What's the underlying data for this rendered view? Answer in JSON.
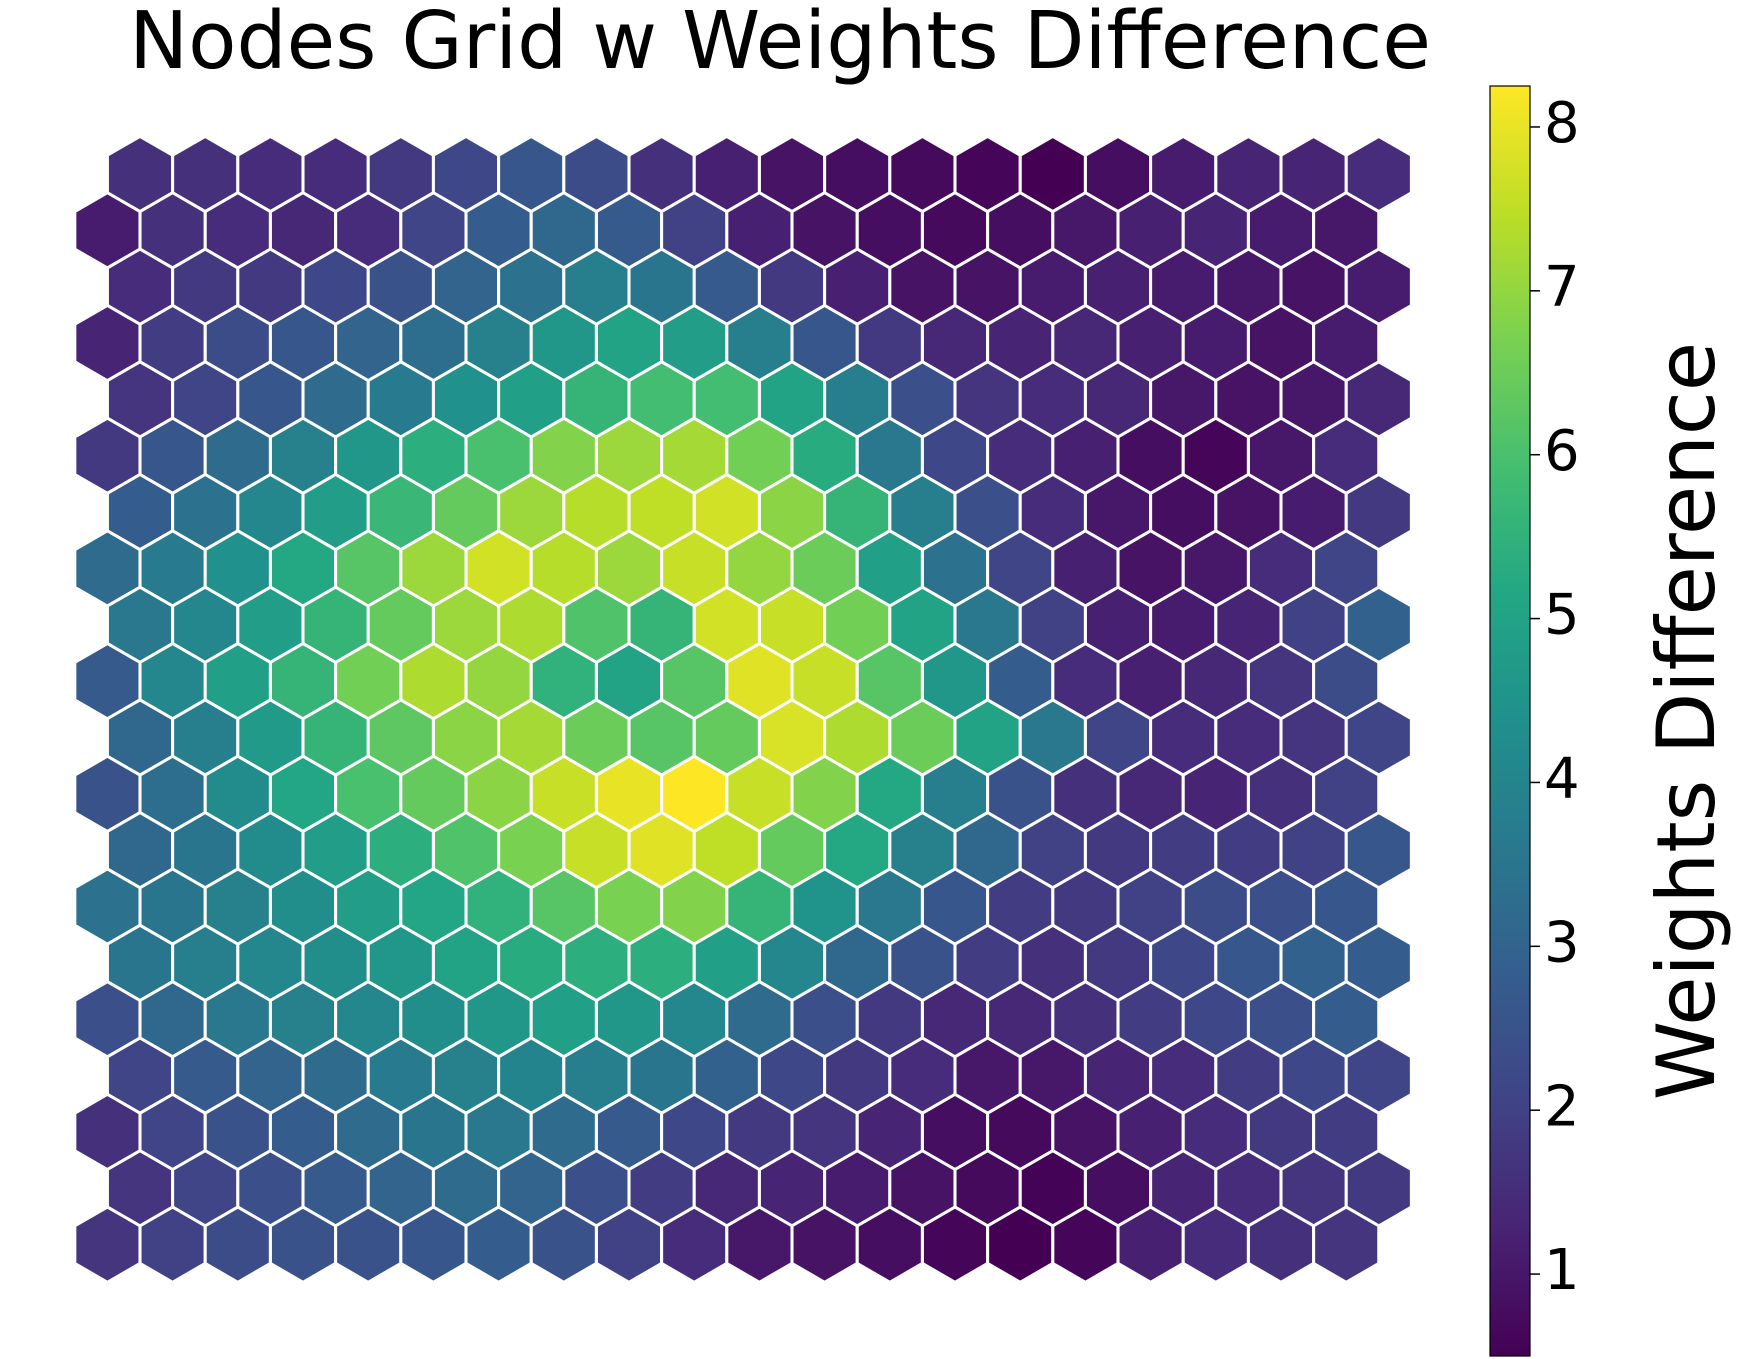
{
  "chart_data": {
    "type": "heatmap",
    "layout": "hexagonal-grid",
    "title": "Nodes Grid w Weights Difference",
    "colormap": "viridis",
    "cell_edge_color": "#ffffff",
    "colorbar": {
      "label": "Weights Difference",
      "vmin": 0.5,
      "vmax": 8.25,
      "ticks": [
        1,
        2,
        3,
        4,
        5,
        6,
        7,
        8
      ],
      "tick_labels": [
        "1",
        "2",
        "3",
        "4",
        "5",
        "6",
        "7",
        "8"
      ]
    },
    "rows": 20,
    "cols": 20,
    "row_order": "top-to-bottom; odd rows shifted left by half a cell",
    "values": [
      [
        1.6,
        1.6,
        1.5,
        1.5,
        1.8,
        2.2,
        2.6,
        2.3,
        1.6,
        1.2,
        0.9,
        0.8,
        0.7,
        0.6,
        0.5,
        0.8,
        1.1,
        1.3,
        1.3,
        1.5
      ],
      [
        1.1,
        1.6,
        1.5,
        1.4,
        1.5,
        2.1,
        2.8,
        3.1,
        2.7,
        2.0,
        1.2,
        0.9,
        0.8,
        0.7,
        0.8,
        1.0,
        1.2,
        1.3,
        1.1,
        1.0
      ],
      [
        1.5,
        1.8,
        1.8,
        2.2,
        2.5,
        3.0,
        3.4,
        3.8,
        3.5,
        2.7,
        1.8,
        1.2,
        0.9,
        0.9,
        1.1,
        1.2,
        1.1,
        1.0,
        0.9,
        1.1
      ],
      [
        1.3,
        1.9,
        2.3,
        2.6,
        3.0,
        3.3,
        3.9,
        4.6,
        5.0,
        4.8,
        3.8,
        2.6,
        1.8,
        1.4,
        1.3,
        1.4,
        1.2,
        1.1,
        0.9,
        1.1
      ],
      [
        1.7,
        2.1,
        2.6,
        3.2,
        3.7,
        4.4,
        4.9,
        5.6,
        5.9,
        5.9,
        5.0,
        3.8,
        2.4,
        1.7,
        1.5,
        1.4,
        1.0,
        0.9,
        1.0,
        1.4
      ],
      [
        1.8,
        2.6,
        3.2,
        3.9,
        4.6,
        5.4,
        6.0,
        6.8,
        7.1,
        7.2,
        6.6,
        5.3,
        3.6,
        2.2,
        1.5,
        1.2,
        0.8,
        0.6,
        1.0,
        1.5
      ],
      [
        2.8,
        3.4,
        4.1,
        4.8,
        5.7,
        6.4,
        7.1,
        7.4,
        7.5,
        7.7,
        6.9,
        5.6,
        3.8,
        2.4,
        1.5,
        1.0,
        0.8,
        0.9,
        1.1,
        1.8
      ],
      [
        3.2,
        3.7,
        4.4,
        5.2,
        6.2,
        7.1,
        7.7,
        7.4,
        7.1,
        7.6,
        7.0,
        6.5,
        4.9,
        3.4,
        2.1,
        1.2,
        0.9,
        1.0,
        1.5,
        2.1
      ],
      [
        3.6,
        4.1,
        4.8,
        5.6,
        6.4,
        7.1,
        7.3,
        6.1,
        5.6,
        7.7,
        7.6,
        6.6,
        5.0,
        3.6,
        2.0,
        1.2,
        1.1,
        1.3,
        2.0,
        2.9
      ],
      [
        2.7,
        4.1,
        4.9,
        5.6,
        6.6,
        7.3,
        7.0,
        5.5,
        5.0,
        6.2,
        7.9,
        7.6,
        6.2,
        4.6,
        2.8,
        1.5,
        1.2,
        1.4,
        1.7,
        2.3
      ],
      [
        3.1,
        3.8,
        4.7,
        5.6,
        6.3,
        6.9,
        7.2,
        6.5,
        6.2,
        6.4,
        7.8,
        7.3,
        6.5,
        5.0,
        3.6,
        2.1,
        1.5,
        1.5,
        1.7,
        2.1
      ],
      [
        2.5,
        3.3,
        4.2,
        5.1,
        6.0,
        6.4,
        6.9,
        7.6,
        8.0,
        8.25,
        7.6,
        6.8,
        5.2,
        3.8,
        2.5,
        1.6,
        1.4,
        1.3,
        1.6,
        2.0
      ],
      [
        3.1,
        3.5,
        4.2,
        4.8,
        5.4,
        6.1,
        6.7,
        7.6,
        7.9,
        7.5,
        6.4,
        5.2,
        3.9,
        3.1,
        2.0,
        1.8,
        1.9,
        1.9,
        2.0,
        2.6
      ],
      [
        3.4,
        3.5,
        3.9,
        4.3,
        4.8,
        5.1,
        5.5,
        6.2,
        6.7,
        6.8,
        5.6,
        4.5,
        3.6,
        2.6,
        1.9,
        1.8,
        2.0,
        2.3,
        2.4,
        2.6
      ],
      [
        3.5,
        3.8,
        4.1,
        4.3,
        4.6,
        5.0,
        5.3,
        5.4,
        5.4,
        4.9,
        4.1,
        3.1,
        2.5,
        1.9,
        1.6,
        1.8,
        2.2,
        2.6,
        2.9,
        2.8
      ],
      [
        2.4,
        3.1,
        3.6,
        3.9,
        4.1,
        4.3,
        4.6,
        4.9,
        4.6,
        4.1,
        3.2,
        2.4,
        1.8,
        1.4,
        1.4,
        1.6,
        1.9,
        2.2,
        2.4,
        2.8
      ],
      [
        2.1,
        2.7,
        3.0,
        3.2,
        3.7,
        3.9,
        4.0,
        3.8,
        3.5,
        2.9,
        2.2,
        1.8,
        1.5,
        1.0,
        1.0,
        1.3,
        1.5,
        1.9,
        2.2,
        2.1
      ],
      [
        1.6,
        2.1,
        2.5,
        2.8,
        3.2,
        3.5,
        3.6,
        3.2,
        2.7,
        2.2,
        1.8,
        1.7,
        1.3,
        0.8,
        0.7,
        0.9,
        1.2,
        1.5,
        1.8,
        1.9
      ],
      [
        1.7,
        2.1,
        2.4,
        2.7,
        3.0,
        3.2,
        3.0,
        2.4,
        1.9,
        1.4,
        1.3,
        1.1,
        0.9,
        0.7,
        0.55,
        0.8,
        1.3,
        1.5,
        1.7,
        1.8
      ],
      [
        1.7,
        2.0,
        2.3,
        2.5,
        2.5,
        2.6,
        2.8,
        2.5,
        2.0,
        1.5,
        1.0,
        0.9,
        0.8,
        0.6,
        0.5,
        0.6,
        1.2,
        1.5,
        1.6,
        1.7
      ]
    ]
  }
}
